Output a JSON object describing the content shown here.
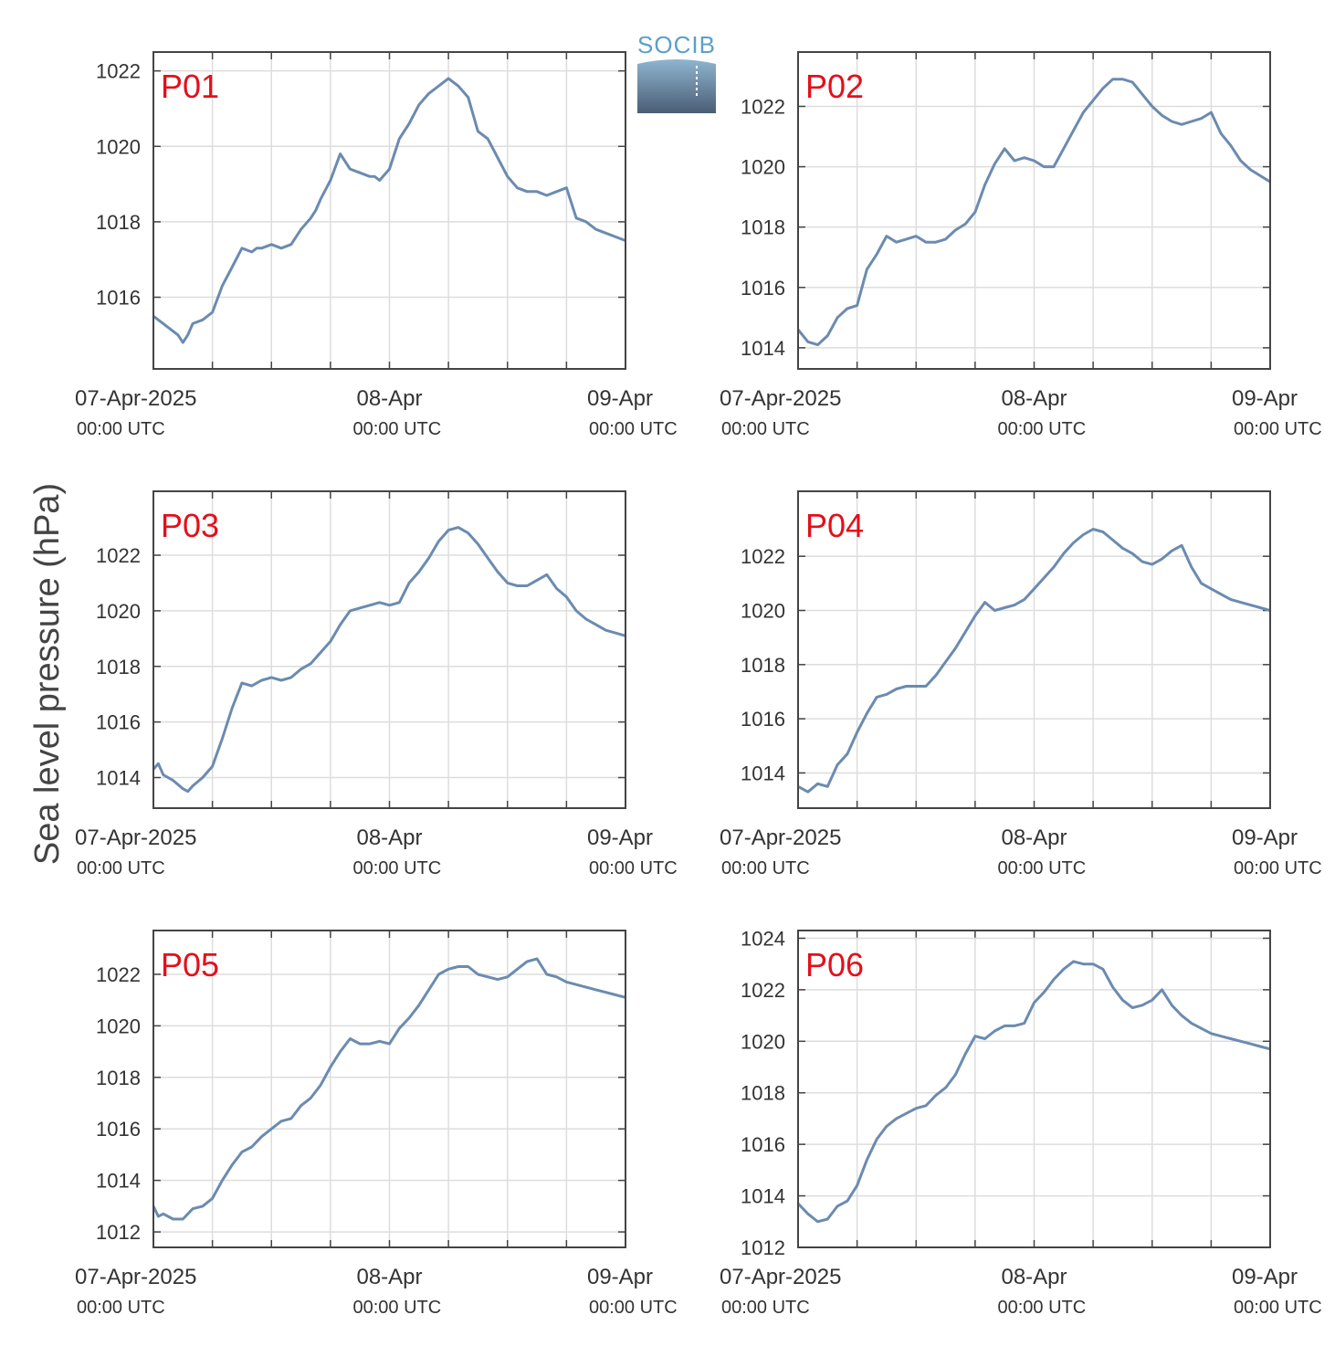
{
  "figure": {
    "ylabel": "Sea level pressure (hPa)",
    "logo_text": "SOCIB"
  },
  "colors": {
    "line": "#6b8bb0",
    "grid": "#dddddd",
    "axes": "#444444",
    "tag": "#e3101b"
  },
  "chart_data": [
    {
      "type": "line",
      "panel": "P01",
      "xlim": [
        0,
        48
      ],
      "xticks": [
        {
          "x": 0,
          "date": "07-Apr-2025",
          "time": "00:00 UTC"
        },
        {
          "x": 24,
          "date": "08-Apr",
          "time": "00:00 UTC"
        },
        {
          "x": 48,
          "date": "09-Apr",
          "time": "00:00 UTC"
        }
      ],
      "yticks": [
        1016,
        1018,
        1020,
        1022
      ],
      "ylim": [
        1014.1,
        1022.5
      ],
      "grid": true,
      "x": [
        0,
        1,
        2,
        2.5,
        3,
        3.5,
        4,
        5,
        6,
        7,
        8,
        9,
        10,
        10.5,
        11,
        12,
        13,
        14,
        15,
        16,
        16.5,
        17,
        18,
        19,
        20,
        21,
        22,
        22.5,
        23,
        24,
        25,
        26,
        27,
        28,
        29,
        30,
        31,
        32,
        33,
        34,
        35,
        36,
        37,
        38,
        39,
        40,
        41,
        42,
        43,
        44,
        45,
        46,
        47,
        48
      ],
      "y": [
        1015.5,
        1015.3,
        1015.1,
        1015.0,
        1014.8,
        1015.0,
        1015.3,
        1015.4,
        1015.6,
        1016.3,
        1016.8,
        1017.3,
        1017.2,
        1017.3,
        1017.3,
        1017.4,
        1017.3,
        1017.4,
        1017.8,
        1018.1,
        1018.3,
        1018.6,
        1019.1,
        1019.8,
        1019.4,
        1019.3,
        1019.2,
        1019.2,
        1019.1,
        1019.4,
        1020.2,
        1020.6,
        1021.1,
        1021.4,
        1021.6,
        1021.8,
        1021.6,
        1021.3,
        1020.4,
        1020.2,
        1019.7,
        1019.2,
        1018.9,
        1018.8,
        1018.8,
        1018.7,
        1018.8,
        1018.9,
        1018.1,
        1018.0,
        1017.8,
        1017.7,
        1017.6,
        1017.5
      ]
    },
    {
      "type": "line",
      "panel": "P02",
      "xlim": [
        0,
        48
      ],
      "xticks": [
        {
          "x": 0,
          "date": "07-Apr-2025",
          "time": "00:00 UTC"
        },
        {
          "x": 24,
          "date": "08-Apr",
          "time": "00:00 UTC"
        },
        {
          "x": 48,
          "date": "09-Apr",
          "time": "00:00 UTC"
        }
      ],
      "yticks": [
        1014,
        1016,
        1018,
        1020,
        1022
      ],
      "ylim": [
        1013.3,
        1023.8
      ],
      "grid": true,
      "x": [
        0,
        1,
        2,
        3,
        4,
        5,
        6,
        7,
        8,
        9,
        10,
        11,
        12,
        13,
        14,
        15,
        16,
        17,
        18,
        19,
        20,
        21,
        22,
        23,
        24,
        25,
        26,
        27,
        28,
        29,
        30,
        31,
        32,
        33,
        34,
        35,
        36,
        37,
        38,
        39,
        40,
        41,
        42,
        43,
        44,
        45,
        46,
        47,
        48
      ],
      "y": [
        1014.6,
        1014.2,
        1014.1,
        1014.4,
        1015.0,
        1015.3,
        1015.4,
        1016.6,
        1017.1,
        1017.7,
        1017.5,
        1017.6,
        1017.7,
        1017.5,
        1017.5,
        1017.6,
        1017.9,
        1018.1,
        1018.5,
        1019.4,
        1020.1,
        1020.6,
        1020.2,
        1020.3,
        1020.2,
        1020.0,
        1020.0,
        1020.6,
        1021.2,
        1021.8,
        1022.2,
        1022.6,
        1022.9,
        1022.9,
        1022.8,
        1022.4,
        1022.0,
        1021.7,
        1021.5,
        1021.4,
        1021.5,
        1021.6,
        1021.8,
        1021.1,
        1020.7,
        1020.2,
        1019.9,
        1019.7,
        1019.5
      ]
    },
    {
      "type": "line",
      "panel": "P03",
      "xlim": [
        0,
        48
      ],
      "xticks": [
        {
          "x": 0,
          "date": "07-Apr-2025",
          "time": "00:00 UTC"
        },
        {
          "x": 24,
          "date": "08-Apr",
          "time": "00:00 UTC"
        },
        {
          "x": 48,
          "date": "09-Apr",
          "time": "00:00 UTC"
        }
      ],
      "yticks": [
        1014,
        1016,
        1018,
        1020,
        1022
      ],
      "ylim": [
        1012.9,
        1024.3
      ],
      "grid": true,
      "x": [
        0,
        0.5,
        1,
        2,
        3,
        3.5,
        4,
        5,
        6,
        7,
        8,
        9,
        10,
        11,
        12,
        13,
        14,
        15,
        16,
        17,
        18,
        19,
        20,
        21,
        22,
        23,
        24,
        25,
        26,
        27,
        28,
        29,
        30,
        31,
        32,
        33,
        34,
        35,
        36,
        37,
        38,
        39,
        40,
        41,
        42,
        43,
        44,
        45,
        46,
        47,
        48
      ],
      "y": [
        1014.3,
        1014.5,
        1014.1,
        1013.9,
        1013.6,
        1013.5,
        1013.7,
        1014.0,
        1014.4,
        1015.4,
        1016.5,
        1017.4,
        1017.3,
        1017.5,
        1017.6,
        1017.5,
        1017.6,
        1017.9,
        1018.1,
        1018.5,
        1018.9,
        1019.5,
        1020.0,
        1020.1,
        1020.2,
        1020.3,
        1020.2,
        1020.3,
        1021.0,
        1021.4,
        1021.9,
        1022.5,
        1022.9,
        1023.0,
        1022.8,
        1022.4,
        1021.9,
        1021.4,
        1021.0,
        1020.9,
        1020.9,
        1021.1,
        1021.3,
        1020.8,
        1020.5,
        1020.0,
        1019.7,
        1019.5,
        1019.3,
        1019.2,
        1019.1
      ]
    },
    {
      "type": "line",
      "panel": "P04",
      "xlim": [
        0,
        48
      ],
      "xticks": [
        {
          "x": 0,
          "date": "07-Apr-2025",
          "time": "00:00 UTC"
        },
        {
          "x": 24,
          "date": "08-Apr",
          "time": "00:00 UTC"
        },
        {
          "x": 48,
          "date": "09-Apr",
          "time": "00:00 UTC"
        }
      ],
      "yticks": [
        1014,
        1016,
        1018,
        1020,
        1022
      ],
      "ylim": [
        1012.7,
        1024.4
      ],
      "grid": true,
      "x": [
        0,
        1,
        2,
        3,
        4,
        5,
        6,
        7,
        8,
        9,
        10,
        11,
        12,
        13,
        14,
        15,
        16,
        17,
        18,
        19,
        20,
        21,
        22,
        23,
        24,
        25,
        26,
        27,
        28,
        29,
        30,
        31,
        32,
        33,
        34,
        35,
        36,
        37,
        38,
        39,
        40,
        41,
        42,
        43,
        44,
        45,
        46,
        47,
        48
      ],
      "y": [
        1013.5,
        1013.3,
        1013.6,
        1013.5,
        1014.3,
        1014.7,
        1015.5,
        1016.2,
        1016.8,
        1016.9,
        1017.1,
        1017.2,
        1017.2,
        1017.2,
        1017.6,
        1018.1,
        1018.6,
        1019.2,
        1019.8,
        1020.3,
        1020.0,
        1020.1,
        1020.2,
        1020.4,
        1020.8,
        1021.2,
        1021.6,
        1022.1,
        1022.5,
        1022.8,
        1023.0,
        1022.9,
        1022.6,
        1022.3,
        1022.1,
        1021.8,
        1021.7,
        1021.9,
        1022.2,
        1022.4,
        1021.6,
        1021.0,
        1020.8,
        1020.6,
        1020.4,
        1020.3,
        1020.2,
        1020.1,
        1020.0
      ]
    },
    {
      "type": "line",
      "panel": "P05",
      "xlim": [
        0,
        48
      ],
      "xticks": [
        {
          "x": 0,
          "date": "07-Apr-2025",
          "time": "00:00 UTC"
        },
        {
          "x": 24,
          "date": "08-Apr",
          "time": "00:00 UTC"
        },
        {
          "x": 48,
          "date": "09-Apr",
          "time": "00:00 UTC"
        }
      ],
      "yticks": [
        1012,
        1014,
        1016,
        1018,
        1020,
        1022
      ],
      "ylim": [
        1011.4,
        1023.7
      ],
      "grid": true,
      "x": [
        0,
        0.5,
        1,
        2,
        3,
        4,
        5,
        6,
        7,
        8,
        9,
        10,
        11,
        12,
        13,
        14,
        15,
        16,
        17,
        18,
        19,
        20,
        21,
        22,
        23,
        24,
        25,
        26,
        27,
        28,
        29,
        30,
        31,
        32,
        33,
        34,
        35,
        36,
        37,
        38,
        39,
        40,
        41,
        42,
        43,
        44,
        45,
        46,
        47,
        48
      ],
      "y": [
        1013.0,
        1012.6,
        1012.7,
        1012.5,
        1012.5,
        1012.9,
        1013.0,
        1013.3,
        1014.0,
        1014.6,
        1015.1,
        1015.3,
        1015.7,
        1016.0,
        1016.3,
        1016.4,
        1016.9,
        1017.2,
        1017.7,
        1018.4,
        1019.0,
        1019.5,
        1019.3,
        1019.3,
        1019.4,
        1019.3,
        1019.9,
        1020.3,
        1020.8,
        1021.4,
        1022.0,
        1022.2,
        1022.3,
        1022.3,
        1022.0,
        1021.9,
        1021.8,
        1021.9,
        1022.2,
        1022.5,
        1022.6,
        1022.0,
        1021.9,
        1021.7,
        1021.6,
        1021.5,
        1021.4,
        1021.3,
        1021.2,
        1021.1
      ]
    },
    {
      "type": "line",
      "panel": "P06",
      "xlim": [
        0,
        48
      ],
      "xticks": [
        {
          "x": 0,
          "date": "07-Apr-2025",
          "time": "00:00 UTC"
        },
        {
          "x": 24,
          "date": "08-Apr",
          "time": "00:00 UTC"
        },
        {
          "x": 48,
          "date": "09-Apr",
          "time": "00:00 UTC"
        }
      ],
      "yticks": [
        1012,
        1014,
        1016,
        1018,
        1020,
        1022,
        1024
      ],
      "ylim": [
        1012.0,
        1024.3
      ],
      "grid": true,
      "x": [
        0,
        1,
        2,
        3,
        4,
        5,
        6,
        7,
        8,
        9,
        10,
        11,
        12,
        13,
        14,
        15,
        16,
        17,
        18,
        19,
        20,
        21,
        22,
        23,
        24,
        25,
        26,
        27,
        28,
        29,
        30,
        31,
        32,
        33,
        34,
        35,
        36,
        37,
        38,
        39,
        40,
        41,
        42,
        43,
        44,
        45,
        46,
        47,
        48
      ],
      "y": [
        1013.7,
        1013.3,
        1013.0,
        1013.1,
        1013.6,
        1013.8,
        1014.4,
        1015.4,
        1016.2,
        1016.7,
        1017.0,
        1017.2,
        1017.4,
        1017.5,
        1017.9,
        1018.2,
        1018.7,
        1019.5,
        1020.2,
        1020.1,
        1020.4,
        1020.6,
        1020.6,
        1020.7,
        1021.5,
        1021.9,
        1022.4,
        1022.8,
        1023.1,
        1023.0,
        1023.0,
        1022.8,
        1022.1,
        1021.6,
        1021.3,
        1021.4,
        1021.6,
        1022.0,
        1021.4,
        1021.0,
        1020.7,
        1020.5,
        1020.3,
        1020.2,
        1020.1,
        1020.0,
        1019.9,
        1019.8,
        1019.7
      ]
    }
  ]
}
